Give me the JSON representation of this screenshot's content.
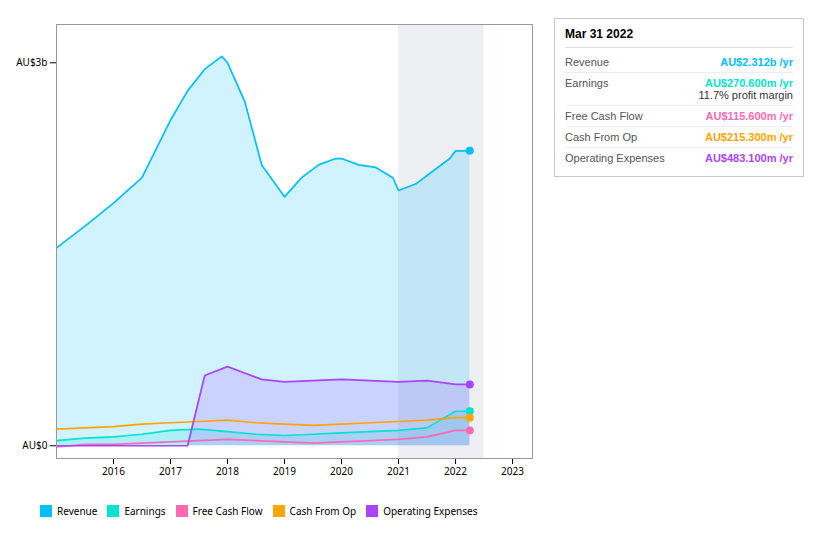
{
  "chart_data": {
    "type": "line",
    "xlim": [
      2015.0,
      2023.35
    ],
    "xticks": [
      2016,
      2017,
      2018,
      2019,
      2020,
      2021,
      2022,
      2023
    ],
    "ylim": [
      -0.1,
      3.3
    ],
    "yticks": [
      {
        "value": 0,
        "label": "AU$0"
      },
      {
        "value": 3,
        "label": "AU$3b"
      }
    ],
    "grid": false,
    "legend": "bottom",
    "highlight_x": [
      2021.0,
      2022.5
    ],
    "series": [
      {
        "name": "Revenue",
        "type": "area",
        "color": "#00bfff",
        "x": [
          2015.0,
          2015.5,
          2016.0,
          2016.5,
          2017.0,
          2017.3,
          2017.6,
          2017.9,
          2018.0,
          2018.3,
          2018.6,
          2019.0,
          2019.3,
          2019.6,
          2019.9,
          2020.0,
          2020.3,
          2020.6,
          2020.9,
          2021.0,
          2021.3,
          2021.6,
          2021.9,
          2022.0,
          2022.25
        ],
        "values": [
          1.55,
          1.72,
          1.9,
          2.1,
          2.55,
          2.78,
          2.95,
          3.05,
          3.0,
          2.7,
          2.2,
          1.95,
          2.1,
          2.2,
          2.25,
          2.25,
          2.2,
          2.18,
          2.1,
          2.0,
          2.05,
          2.15,
          2.25,
          2.31,
          2.31
        ]
      },
      {
        "name": "Earnings",
        "type": "area",
        "color": "#00e5cc",
        "x": [
          2015.0,
          2015.5,
          2016.0,
          2016.5,
          2017.0,
          2017.5,
          2018.0,
          2018.5,
          2019.0,
          2019.5,
          2020.0,
          2020.5,
          2021.0,
          2021.5,
          2022.0,
          2022.25
        ],
        "values": [
          0.04,
          0.06,
          0.07,
          0.09,
          0.12,
          0.13,
          0.11,
          0.09,
          0.08,
          0.09,
          0.1,
          0.11,
          0.12,
          0.14,
          0.27,
          0.27
        ]
      },
      {
        "name": "Free Cash Flow",
        "type": "line",
        "color": "#ff69b4",
        "x": [
          2015.0,
          2015.5,
          2016.0,
          2016.5,
          2017.0,
          2017.5,
          2018.0,
          2018.5,
          2019.0,
          2019.5,
          2020.0,
          2020.5,
          2021.0,
          2021.5,
          2022.0,
          2022.25
        ],
        "values": [
          -0.01,
          0.01,
          0.01,
          0.02,
          0.03,
          0.04,
          0.05,
          0.04,
          0.03,
          0.02,
          0.03,
          0.04,
          0.05,
          0.07,
          0.12,
          0.12
        ]
      },
      {
        "name": "Cash From Op",
        "type": "line",
        "color": "#ffa500",
        "x": [
          2015.0,
          2015.5,
          2016.0,
          2016.5,
          2017.0,
          2017.5,
          2018.0,
          2018.5,
          2019.0,
          2019.5,
          2020.0,
          2020.5,
          2021.0,
          2021.5,
          2022.0,
          2022.25
        ],
        "values": [
          0.13,
          0.14,
          0.15,
          0.17,
          0.18,
          0.19,
          0.2,
          0.18,
          0.17,
          0.16,
          0.17,
          0.18,
          0.19,
          0.2,
          0.22,
          0.22
        ]
      },
      {
        "name": "Operating Expenses",
        "type": "area",
        "color": "#aa44ff",
        "x": [
          2015.0,
          2015.5,
          2016.0,
          2016.5,
          2017.0,
          2017.3,
          2017.6,
          2018.0,
          2018.3,
          2018.6,
          2019.0,
          2019.5,
          2020.0,
          2020.5,
          2021.0,
          2021.5,
          2022.0,
          2022.25
        ],
        "values": [
          0.0,
          0.0,
          0.0,
          0.0,
          0.0,
          0.0,
          0.55,
          0.62,
          0.57,
          0.52,
          0.5,
          0.51,
          0.52,
          0.51,
          0.5,
          0.51,
          0.48,
          0.48
        ]
      }
    ],
    "annotations": [
      {
        "title": "Mar 31 2022",
        "rows": [
          {
            "label": "Revenue",
            "value": "AU$2.312b /yr",
            "color": "#00bfff"
          },
          {
            "label": "Earnings",
            "value": "AU$270.600m /yr",
            "color": "#00e5cc",
            "sub": "11.7% profit margin"
          },
          {
            "label": "Free Cash Flow",
            "value": "AU$115.600m /yr",
            "color": "#ff69b4"
          },
          {
            "label": "Cash From Op",
            "value": "AU$215.300m /yr",
            "color": "#ffa500"
          },
          {
            "label": "Operating Expenses",
            "value": "AU$483.100m /yr",
            "color": "#aa44ff"
          }
        ]
      }
    ]
  }
}
